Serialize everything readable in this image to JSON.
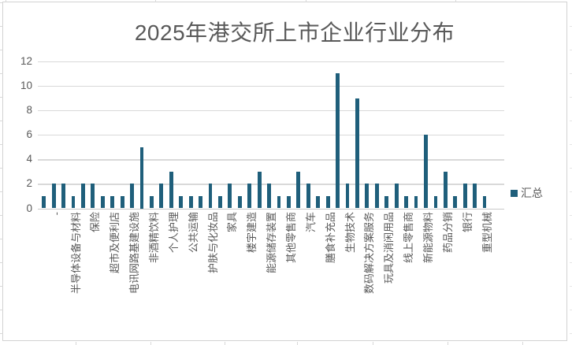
{
  "colors": {
    "bar": "#1F5F7B",
    "gridline": "#D9D9D9",
    "axis_text": "#595959",
    "chart_border": "#D2D2D2"
  },
  "chart_data": {
    "type": "bar",
    "title": "2025年港交所上市企业行业分布",
    "xlabel": "",
    "ylabel": "",
    "ylim": [
      0,
      12
    ],
    "y_ticks": [
      0,
      2,
      4,
      6,
      8,
      10,
      12
    ],
    "grid": true,
    "legend_position": "right",
    "x_label_rotation": -90,
    "x_label_interval": 2,
    "categories": [
      "-",
      "",
      "半导体设备与材料",
      "",
      "保险",
      "",
      "超市及便利店",
      "",
      "电讯网路基建设施",
      "",
      "非酒精饮料",
      "",
      "个人护理",
      "",
      "公共运输",
      "",
      "护肤与化妆品",
      "",
      "家具",
      "",
      "楼宇建造",
      "",
      "能源储存装置",
      "",
      "其他零售商",
      "",
      "汽车",
      "",
      "膳食补充品",
      "",
      "生物技术",
      "",
      "数码解决方案服务",
      "",
      "玩具及消闲用品",
      "",
      "线上零售商",
      "",
      "新能源物料",
      "",
      "药品分销",
      "",
      "银行",
      "",
      "重型机械",
      ""
    ],
    "series": [
      {
        "name": "汇总",
        "values": [
          1,
          2,
          2,
          1,
          2,
          2,
          1,
          1,
          1,
          2,
          5,
          1,
          2,
          3,
          1,
          1,
          1,
          2,
          1,
          2,
          1,
          2,
          3,
          2,
          1,
          1,
          3,
          2,
          1,
          1,
          11,
          2,
          9,
          2,
          2,
          1,
          2,
          1,
          1,
          6,
          1,
          3,
          1,
          2,
          2,
          1
        ]
      }
    ]
  }
}
